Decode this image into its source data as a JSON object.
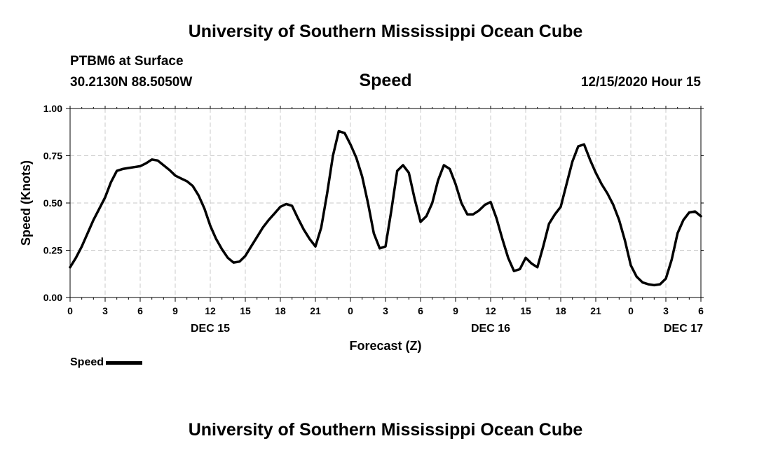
{
  "header": {
    "title": "University of Southern Mississippi Ocean Cube",
    "station": "PTBM6 at Surface",
    "coords": "30.2130N 88.5050W",
    "subtitle": "Speed",
    "datetime": "12/15/2020 Hour 15"
  },
  "footer": {
    "title": "University of Southern Mississippi Ocean Cube"
  },
  "legend": {
    "label": "Speed",
    "color": "#000000"
  },
  "chart_data": {
    "type": "line",
    "title": "Speed",
    "xlabel": "Forecast (Z)",
    "ylabel": "Speed (Knots)",
    "xlim": [
      0,
      54
    ],
    "ylim": [
      0,
      1.0
    ],
    "grid": true,
    "x_ticks": [
      0,
      3,
      6,
      9,
      12,
      15,
      18,
      21,
      24,
      27,
      30,
      33,
      36,
      39,
      42,
      45,
      48,
      51,
      54
    ],
    "x_tick_labels": [
      "0",
      "3",
      "6",
      "9",
      "12",
      "15",
      "18",
      "21",
      "0",
      "3",
      "6",
      "9",
      "12",
      "15",
      "18",
      "21",
      "0",
      "3",
      "6"
    ],
    "day_labels": [
      {
        "x": 12,
        "label": "DEC 15"
      },
      {
        "x": 36,
        "label": "DEC 16"
      },
      {
        "x": 52.5,
        "label": "DEC 17"
      }
    ],
    "y_ticks": [
      0,
      0.25,
      0.5,
      0.75,
      1.0
    ],
    "y_tick_labels": [
      "0.00",
      "0.25",
      "0.50",
      "0.75",
      "1.00"
    ],
    "series": [
      {
        "name": "Speed",
        "color": "#000000",
        "x": [
          0,
          0.5,
          1,
          1.5,
          2,
          2.5,
          3,
          3.5,
          4,
          4.5,
          5,
          5.5,
          6,
          6.5,
          7,
          7.5,
          8,
          8.5,
          9,
          9.5,
          10,
          10.5,
          11,
          11.5,
          12,
          12.5,
          13,
          13.5,
          14,
          14.5,
          15,
          15.5,
          16,
          16.5,
          17,
          17.5,
          18,
          18.5,
          19,
          19.5,
          20,
          20.5,
          21,
          21.5,
          22,
          22.5,
          23,
          23.5,
          24,
          24.5,
          25,
          25.5,
          26,
          26.5,
          27,
          27.5,
          28,
          28.5,
          29,
          29.5,
          30,
          30.5,
          31,
          31.5,
          32,
          32.5,
          33,
          33.5,
          34,
          34.5,
          35,
          35.5,
          36,
          36.5,
          37,
          37.5,
          38,
          38.5,
          39,
          39.5,
          40,
          40.5,
          41,
          41.5,
          42,
          42.5,
          43,
          43.5,
          44,
          44.5,
          45,
          45.5,
          46,
          46.5,
          47,
          47.5,
          48,
          48.5,
          49,
          49.5,
          50,
          50.5,
          51,
          51.5,
          52,
          52.5,
          53,
          53.5,
          54
        ],
        "values": [
          0.16,
          0.21,
          0.27,
          0.34,
          0.41,
          0.47,
          0.53,
          0.61,
          0.67,
          0.68,
          0.685,
          0.69,
          0.695,
          0.71,
          0.73,
          0.725,
          0.7,
          0.675,
          0.645,
          0.63,
          0.615,
          0.59,
          0.54,
          0.47,
          0.38,
          0.31,
          0.255,
          0.21,
          0.185,
          0.19,
          0.22,
          0.27,
          0.32,
          0.37,
          0.41,
          0.445,
          0.48,
          0.495,
          0.485,
          0.42,
          0.36,
          0.31,
          0.27,
          0.37,
          0.55,
          0.75,
          0.88,
          0.87,
          0.81,
          0.74,
          0.64,
          0.5,
          0.34,
          0.26,
          0.27,
          0.46,
          0.67,
          0.7,
          0.66,
          0.52,
          0.4,
          0.43,
          0.5,
          0.62,
          0.7,
          0.68,
          0.6,
          0.5,
          0.44,
          0.44,
          0.46,
          0.49,
          0.505,
          0.42,
          0.31,
          0.21,
          0.14,
          0.15,
          0.21,
          0.18,
          0.16,
          0.27,
          0.39,
          0.44,
          0.48,
          0.6,
          0.72,
          0.8,
          0.81,
          0.73,
          0.66,
          0.6,
          0.55,
          0.49,
          0.41,
          0.3,
          0.17,
          0.11,
          0.08,
          0.07,
          0.065,
          0.07,
          0.1,
          0.2,
          0.34,
          0.41,
          0.45,
          0.455,
          0.43
        ]
      }
    ]
  }
}
